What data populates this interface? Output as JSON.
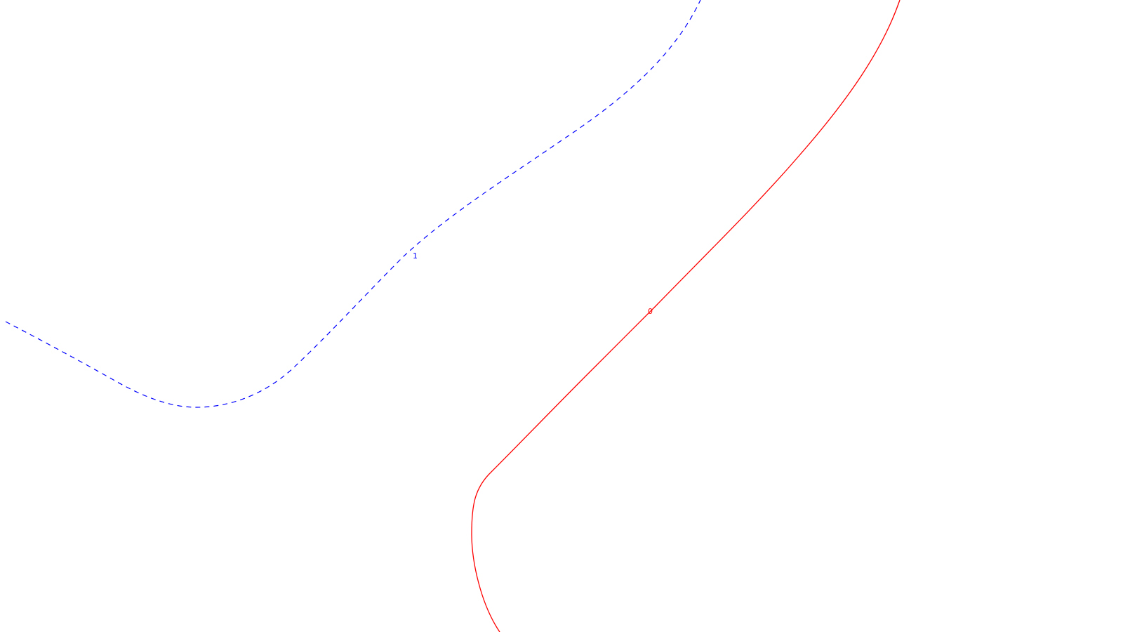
{
  "contours": [
    {
      "label": "1",
      "color": "#0000ff",
      "line_style": "dashed"
    },
    {
      "label": "0",
      "color": "#ff0000",
      "line_style": "solid"
    }
  ]
}
